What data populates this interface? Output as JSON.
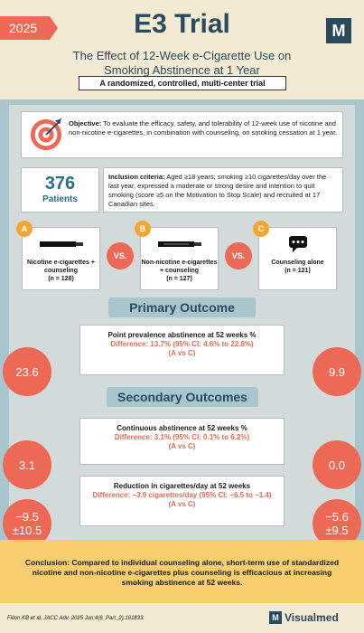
{
  "header": {
    "year": "2025",
    "title": "E3 Trial",
    "subtitle": "The Effect of 12-Week e-Cigarette Use on Smoking Abstinence at 1 Year",
    "trial_type": "A randomized, controlled, multi-center trial",
    "logo_letter": "M"
  },
  "objective": {
    "label": "Objective:",
    "text": "To evaluate the efficacy, safety, and tolerability of 12-week use of nicotine and non-nicotine e-cigarettes, in combination with counseling, on smoking cessation at 1 year."
  },
  "patients": {
    "count": "376",
    "label": "Patients"
  },
  "inclusion": {
    "label": "Inclusion criteria:",
    "text": "Aged ≥18 years; smoking ≥10 cigarettes/day over the last year, expressed a moderate or strong desire and intention to quit smoking (score ≥5 on the Motivation to Stop Scale) and recruited at 17 Canadian sites."
  },
  "arms": [
    {
      "badge": "A",
      "label": "Nicotine e-cigarettes + counseling",
      "n": "(n = 128)",
      "icon": "e-cigarette-icon"
    },
    {
      "badge": "B",
      "label": "Non-nicotine e-cigarettes + counseling",
      "n": "(n = 127)",
      "icon": "e-cigarette-icon"
    },
    {
      "badge": "C",
      "label": "Counseling alone",
      "n": "(n = 121)",
      "icon": "speech-bubble-icon"
    }
  ],
  "vs_label": "VS.",
  "primary": {
    "heading": "Primary Outcome",
    "title": "Point prevalence abstinence at 52 weeks %",
    "difference": "Difference: 13.7% (95% CI: 4.6% to 22.8%)",
    "comparison": "(A vs C)",
    "left_value": "23.6",
    "right_value": "9.9"
  },
  "secondary": {
    "heading": "Secondary Outcomes",
    "items": [
      {
        "title": "Continuous abstinence at 52 weeks %",
        "difference": "Difference: 3.1% (95% CI: 0.1% to 6.2%)",
        "comparison": "(A vs C)",
        "left_value": "3.1",
        "right_value": "0.0"
      },
      {
        "title": "Reduction in cigarettes/day at 52 weeks",
        "difference": "Difference: −3.9 cigarettes/day (95% CI: −6.5 to −1.4)",
        "comparison": "(A vs C)",
        "left_value_1": "−9.5",
        "left_value_2": "±10.5",
        "right_value_1": "−5.6",
        "right_value_2": "±9.5"
      }
    ]
  },
  "conclusion": {
    "label": "Conclusion:",
    "text": "Compared to individual counseling alone, short-term use of standardized nicotine and non-nicotine e-cigarettes plus counseling is efficacious at increasing smoking abstinence at 52 weeks."
  },
  "footer": {
    "citation": "Filion KB et al. JACC Adv. 2025 Jun;4(6_Part_2):101833.",
    "brand": "Visualmed",
    "brand_letter": "M"
  },
  "colors": {
    "accent": "#ec6a55",
    "navy": "#2b4a5f",
    "teal_bg": "#a9c6cc",
    "badge": "#f0a734",
    "conclusion_bg": "#f8cf6e"
  }
}
